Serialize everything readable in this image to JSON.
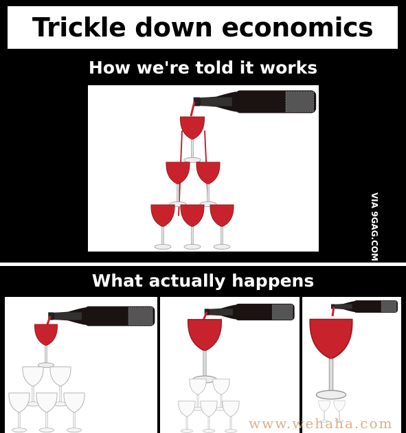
{
  "title": "Trickle down economics",
  "top_caption": "How we're told it works",
  "bottom_caption": "What actually happens",
  "watermark_side": "VIA 9GAG.COM",
  "watermark_bottom": "www.wehaha.com",
  "colors": {
    "wine": "#c8232c",
    "bottle": "#1b1212",
    "glass": "#e6e6e6"
  }
}
